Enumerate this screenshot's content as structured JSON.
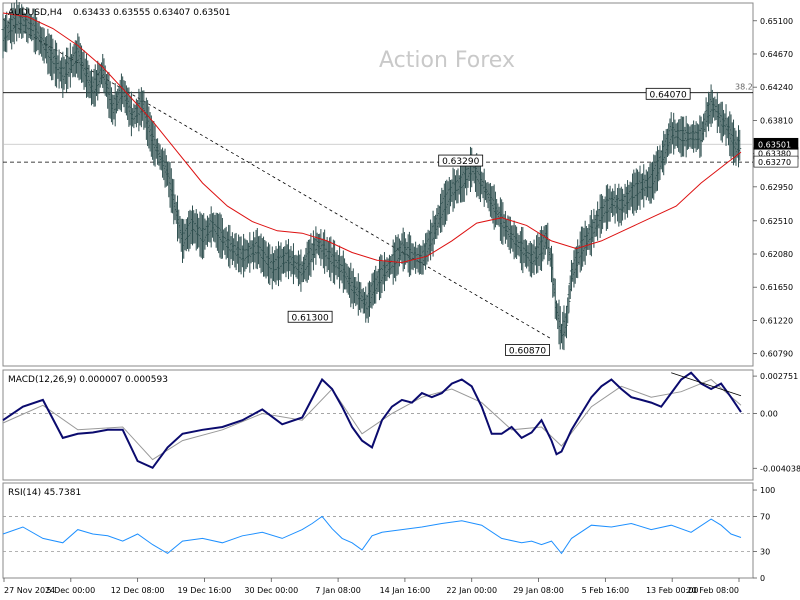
{
  "chart_data": [
    {
      "type": "line",
      "title": "AUDUSD,H4",
      "ohlc_text": "0.63433 0.63555 0.63407 0.63501",
      "watermark": "Action Forex",
      "ylim": [
        0.6063,
        0.6533
      ],
      "yticks": [
        0.651,
        0.6467,
        0.6424,
        0.6381,
        0.6338,
        0.6295,
        0.6251,
        0.6208,
        0.6165,
        0.6122,
        0.6079
      ],
      "ytick_labels": [
        "0.65100",
        "0.64670",
        "0.64240",
        "0.63810",
        "0.63380",
        "0.62950",
        "0.62510",
        "0.62080",
        "0.61650",
        "0.61220",
        "0.60790"
      ],
      "current_price": 0.63501,
      "current_price_label": "0.63501",
      "second_price_label": "0.63380",
      "support_level": 0.6327,
      "support_label": "0.63270",
      "fib_level": 0.64169,
      "fib_label": "38.2",
      "grid": false,
      "xtick_labels": [
        "27 Nov 2024",
        "5 Dec 00:00",
        "12 Dec 08:00",
        "19 Dec 16:00",
        "30 Dec 00:00",
        "7 Jan 08:00",
        "14 Jan 16:00",
        "22 Jan 00:00",
        "29 Jan 08:00",
        "5 Feb 16:00",
        "13 Feb 00:00",
        "20 Feb 08:00"
      ],
      "annotations": [
        {
          "label": "0.64070",
          "x": 137,
          "y": 0.6407
        },
        {
          "label": "0.63290",
          "x": 97,
          "y": 0.6329
        },
        {
          "label": "0.61300",
          "x": 66,
          "y": 0.613
        },
        {
          "label": "0.60870",
          "x": 110,
          "y": 0.6087
        }
      ],
      "series": [
        {
          "name": "price",
          "x": [
            0,
            3,
            6,
            9,
            12,
            15,
            18,
            20,
            22,
            24,
            26,
            28,
            30,
            33,
            36,
            38,
            40,
            42,
            45,
            48,
            51,
            54,
            57,
            60,
            63,
            66,
            68,
            70,
            72,
            73,
            74,
            76,
            78,
            80,
            82,
            84,
            86,
            88,
            90,
            92,
            94,
            96,
            98,
            100,
            102,
            104,
            106,
            108,
            109,
            110,
            111,
            112,
            113,
            114,
            116,
            118,
            120,
            122,
            124,
            126,
            128,
            130,
            132,
            134,
            136,
            138,
            140,
            141,
            142,
            143,
            144,
            145,
            146,
            147,
            148
          ],
          "values": [
            0.649,
            0.6512,
            0.65,
            0.647,
            0.644,
            0.6465,
            0.642,
            0.6445,
            0.6395,
            0.642,
            0.6385,
            0.64,
            0.6355,
            0.6312,
            0.6225,
            0.6245,
            0.623,
            0.6245,
            0.622,
            0.6205,
            0.6215,
            0.619,
            0.6203,
            0.6185,
            0.6222,
            0.62,
            0.6188,
            0.6165,
            0.615,
            0.614,
            0.616,
            0.6182,
            0.6195,
            0.6215,
            0.6205,
            0.62,
            0.623,
            0.6265,
            0.629,
            0.63,
            0.632,
            0.63,
            0.6275,
            0.625,
            0.623,
            0.6215,
            0.62,
            0.6215,
            0.623,
            0.6195,
            0.6135,
            0.6105,
            0.612,
            0.618,
            0.6215,
            0.6235,
            0.626,
            0.6275,
            0.627,
            0.6285,
            0.6295,
            0.63,
            0.633,
            0.6365,
            0.636,
            0.636,
            0.636,
            0.6385,
            0.64,
            0.6395,
            0.638,
            0.6375,
            0.636,
            0.6345,
            0.635
          ]
        },
        {
          "name": "MA",
          "x": [
            0,
            5,
            10,
            15,
            20,
            25,
            30,
            35,
            40,
            45,
            50,
            55,
            60,
            65,
            70,
            75,
            80,
            85,
            90,
            95,
            100,
            105,
            110,
            115,
            120,
            125,
            130,
            135,
            140,
            145,
            148
          ],
          "values": [
            0.652,
            0.6515,
            0.65,
            0.6478,
            0.645,
            0.6415,
            0.638,
            0.634,
            0.63,
            0.627,
            0.625,
            0.6238,
            0.6235,
            0.6225,
            0.621,
            0.62,
            0.6197,
            0.6205,
            0.6225,
            0.6248,
            0.6255,
            0.6245,
            0.6225,
            0.6215,
            0.6225,
            0.624,
            0.6255,
            0.627,
            0.63,
            0.6325,
            0.634
          ]
        }
      ],
      "trendline": {
        "x": [
          0,
          110
        ],
        "values": [
          0.6512,
          0.6098
        ]
      }
    },
    {
      "type": "line",
      "title": "MACD(12,26,9) 0.000007 0.000593",
      "ylim": [
        -0.0049,
        0.0032
      ],
      "yticks": [
        0.002751,
        0.0,
        -0.004038
      ],
      "ytick_labels": [
        "0.002751",
        "0.00",
        "-0.004038"
      ],
      "zero_line": true,
      "series": [
        {
          "name": "MACD",
          "x": [
            0,
            4,
            8,
            12,
            15,
            18,
            21,
            24,
            27,
            30,
            33,
            36,
            40,
            44,
            48,
            52,
            56,
            60,
            64,
            66,
            68,
            70,
            72,
            74,
            76,
            78,
            80,
            82,
            84,
            86,
            88,
            90,
            92,
            94,
            96,
            98,
            100,
            102,
            104,
            106,
            108,
            110,
            111,
            112,
            114,
            116,
            118,
            120,
            122,
            124,
            126,
            128,
            130,
            132,
            134,
            136,
            138,
            140,
            142,
            144,
            146,
            148
          ],
          "values": [
            -0.0005,
            0.0005,
            0.001,
            -0.0018,
            -0.0015,
            -0.0014,
            -0.0012,
            -0.0012,
            -0.0035,
            -0.004,
            -0.0025,
            -0.0015,
            -0.0012,
            -0.001,
            -0.0005,
            0.0003,
            -0.0008,
            -0.0003,
            0.0025,
            0.0018,
            0.0005,
            -0.001,
            -0.002,
            -0.0025,
            -0.0005,
            0.0005,
            0.001,
            0.0008,
            0.0015,
            0.0012,
            0.0015,
            0.0022,
            0.0025,
            0.002,
            0.0005,
            -0.0015,
            -0.0015,
            -0.001,
            -0.0018,
            -0.0014,
            -0.0005,
            -0.002,
            -0.003,
            -0.0028,
            -0.0012,
            0.0,
            0.0012,
            0.002,
            0.0025,
            0.0018,
            0.0012,
            0.001,
            0.0008,
            0.0005,
            0.0015,
            0.0025,
            0.003,
            0.0022,
            0.0018,
            0.0022,
            0.0012,
            0.0001
          ]
        },
        {
          "name": "Signal",
          "x": [
            0,
            8,
            15,
            24,
            30,
            36,
            44,
            52,
            60,
            66,
            72,
            78,
            84,
            90,
            96,
            102,
            108,
            112,
            118,
            124,
            130,
            136,
            142,
            148
          ],
          "values": [
            -0.0007,
            0.0006,
            -0.0012,
            -0.001,
            -0.0034,
            -0.002,
            -0.0012,
            0.0,
            -0.0005,
            0.0018,
            -0.0015,
            0.0,
            0.0012,
            0.0018,
            0.0008,
            -0.0012,
            -0.001,
            -0.0024,
            0.0005,
            0.002,
            0.0012,
            0.0016,
            0.0025,
            0.0006
          ]
        }
      ],
      "trendline": {
        "x": [
          134,
          148
        ],
        "values": [
          0.003,
          0.0013
        ]
      }
    },
    {
      "type": "line",
      "title": "RSI(14) 45.7381",
      "ylim": [
        0,
        108
      ],
      "yticks": [
        100,
        70,
        30,
        0
      ],
      "ytick_labels": [
        "100",
        "70",
        "30",
        "0"
      ],
      "levels": [
        70,
        30
      ],
      "series": [
        {
          "name": "RSI",
          "x": [
            0,
            4,
            8,
            12,
            15,
            18,
            21,
            24,
            27,
            30,
            33,
            36,
            40,
            44,
            48,
            52,
            56,
            60,
            62,
            64,
            66,
            68,
            70,
            72,
            74,
            76,
            80,
            84,
            88,
            92,
            96,
            100,
            104,
            106,
            108,
            110,
            112,
            114,
            118,
            122,
            126,
            130,
            134,
            138,
            142,
            144,
            146,
            148
          ],
          "values": [
            50,
            58,
            45,
            40,
            55,
            50,
            48,
            42,
            50,
            38,
            28,
            42,
            45,
            40,
            48,
            52,
            45,
            55,
            62,
            70,
            56,
            45,
            40,
            32,
            48,
            52,
            55,
            58,
            62,
            65,
            60,
            45,
            40,
            42,
            38,
            42,
            28,
            45,
            60,
            58,
            62,
            55,
            60,
            52,
            67,
            60,
            50,
            46
          ]
        }
      ]
    }
  ]
}
